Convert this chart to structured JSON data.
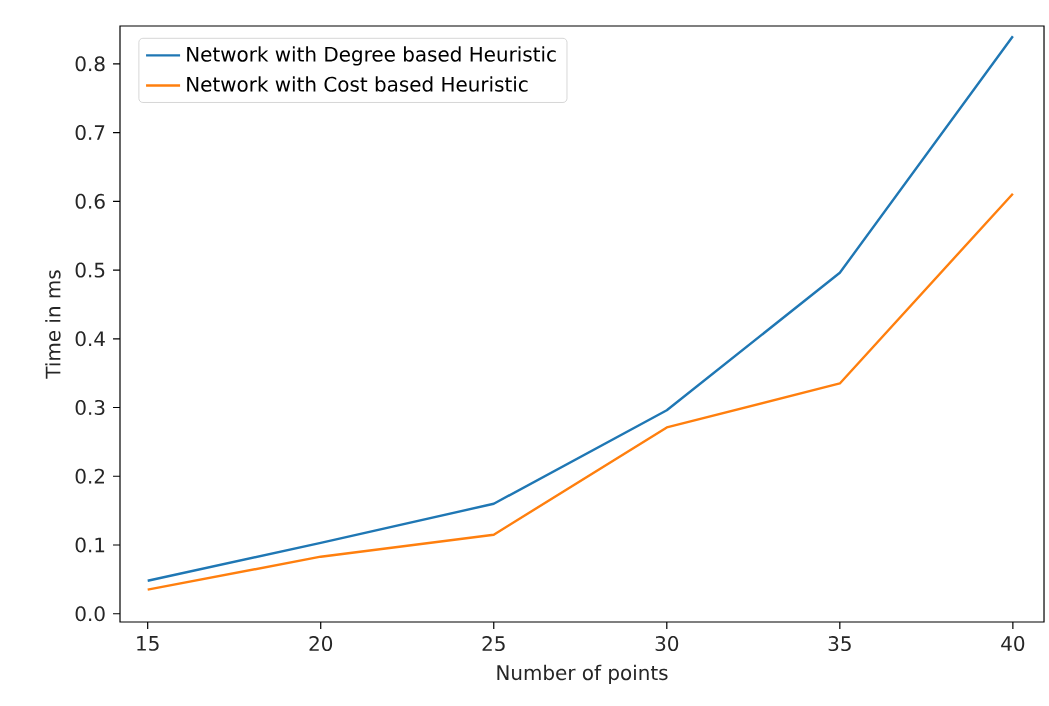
{
  "chart_data": {
    "type": "line",
    "xlabel": "Number of points",
    "ylabel": "Time in ms",
    "x": [
      15,
      20,
      25,
      30,
      35,
      40
    ],
    "series": [
      {
        "name": "Network with Degree based Heuristic",
        "color": "#1f77b4",
        "values": [
          0.048,
          0.103,
          0.16,
          0.296,
          0.496,
          0.84
        ]
      },
      {
        "name": "Network with Cost based Heuristic",
        "color": "#ff7f0e",
        "values": [
          0.035,
          0.083,
          0.115,
          0.271,
          0.335,
          0.611
        ]
      }
    ],
    "xlim": [
      14.2,
      40.9
    ],
    "ylim": [
      -0.012,
      0.855
    ],
    "xticks": [
      15,
      20,
      25,
      30,
      35,
      40
    ],
    "yticks": [
      {
        "value": 0,
        "label": "0.0"
      },
      {
        "value": 0.1,
        "label": "0.1"
      },
      {
        "value": 0.2,
        "label": "0.2"
      },
      {
        "value": 0.3,
        "label": "0.3"
      },
      {
        "value": 0.4,
        "label": "0.4"
      },
      {
        "value": 0.5,
        "label": "0.5"
      },
      {
        "value": 0.6,
        "label": "0.6"
      },
      {
        "value": 0.7,
        "label": "0.7"
      },
      {
        "value": 0.8,
        "label": "0.8"
      }
    ],
    "legend": "top left",
    "grid": false,
    "marker": "none",
    "line_style": "solid"
  }
}
